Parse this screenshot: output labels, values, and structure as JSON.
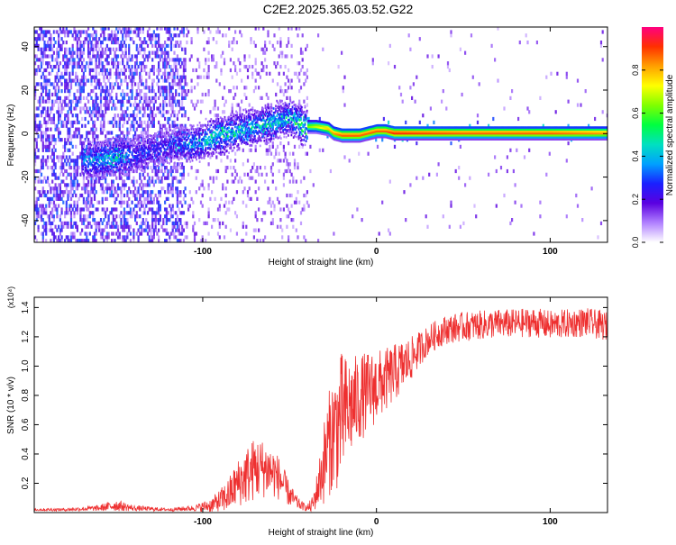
{
  "title": "C2E2.2025.365.03.52.G22",
  "chart_data": [
    {
      "type": "heatmap",
      "name": "spectrogram",
      "xlabel": "Height of straight line (km)",
      "ylabel": "Frequency (Hz)",
      "xlim": [
        -197,
        133
      ],
      "ylim": [
        -50,
        49
      ],
      "xticks": [
        -100,
        0,
        100
      ],
      "yticks": [
        -40,
        -20,
        0,
        20,
        40
      ],
      "colorbar": {
        "label": "Normalized spectral amplitude",
        "range": [
          0,
          1
        ],
        "ticks": [
          0.0,
          0.2,
          0.4,
          0.6,
          0.8
        ],
        "tick_labels": [
          "0.0",
          "0.2",
          "0.4",
          "0.6",
          "0.8"
        ],
        "colormap": [
          "#ffffff",
          "#b080ff",
          "#5a00e0",
          "#1a20ff",
          "#00a0ff",
          "#00e0c0",
          "#00ff40",
          "#80ff00",
          "#ffff00",
          "#ffa000",
          "#ff3000",
          "#ff0080"
        ]
      },
      "ridge": [
        {
          "x": -160,
          "freq": -12,
          "amp": 0.45
        },
        {
          "x": -150,
          "freq": -11,
          "amp": 0.55
        },
        {
          "x": -140,
          "freq": -10,
          "amp": 0.35
        },
        {
          "x": -120,
          "freq": -6,
          "amp": 0.3
        },
        {
          "x": -100,
          "freq": -4,
          "amp": 0.5
        },
        {
          "x": -90,
          "freq": -1,
          "amp": 0.55
        },
        {
          "x": -80,
          "freq": 1,
          "amp": 0.5
        },
        {
          "x": -70,
          "freq": 3,
          "amp": 0.5
        },
        {
          "x": -60,
          "freq": 5,
          "amp": 0.55
        },
        {
          "x": -50,
          "freq": 7,
          "amp": 0.5
        },
        {
          "x": -42,
          "freq": 3,
          "amp": 0.65
        },
        {
          "x": -35,
          "freq": 3,
          "amp": 0.75
        },
        {
          "x": -28,
          "freq": 2,
          "amp": 0.85
        },
        {
          "x": -25,
          "freq": 0,
          "amp": 0.9
        },
        {
          "x": -20,
          "freq": -1,
          "amp": 0.95
        },
        {
          "x": -10,
          "freq": -1,
          "amp": 0.95
        },
        {
          "x": -5,
          "freq": 0,
          "amp": 0.95
        },
        {
          "x": 0,
          "freq": 1,
          "amp": 0.95
        },
        {
          "x": 5,
          "freq": 1,
          "amp": 0.95
        },
        {
          "x": 10,
          "freq": 0,
          "amp": 1.0
        },
        {
          "x": 50,
          "freq": 0,
          "amp": 0.95
        },
        {
          "x": 100,
          "freq": 0,
          "amp": 0.95
        },
        {
          "x": 133,
          "freq": 0,
          "amp": 0.9
        }
      ]
    },
    {
      "type": "line",
      "name": "snr",
      "xlabel": "Height of straight line (km)",
      "ylabel": "SNR (10 * v/v)",
      "scale_label": "(x10⁴)",
      "xlim": [
        -197,
        133
      ],
      "ylim": [
        0,
        1.47
      ],
      "xticks": [
        -100,
        0,
        100
      ],
      "yticks": [
        0.2,
        0.4,
        0.6,
        0.8,
        1.0,
        1.2,
        1.4
      ],
      "ytick_labels": [
        "0.2",
        "0.4",
        "0.6",
        "0.8",
        "1.0",
        "1.2",
        "1.4"
      ],
      "color": "#ee3030",
      "series": [
        {
          "name": "SNR",
          "x": [
            -197,
            -180,
            -160,
            -150,
            -140,
            -120,
            -105,
            -95,
            -90,
            -85,
            -80,
            -75,
            -70,
            -65,
            -60,
            -55,
            -50,
            -45,
            -40,
            -37,
            -35,
            -32,
            -30,
            -28,
            -25,
            -22,
            -20,
            -18,
            -15,
            -10,
            -5,
            0,
            5,
            10,
            15,
            20,
            25,
            30,
            35,
            40,
            50,
            60,
            70,
            80,
            90,
            100,
            110,
            120,
            133
          ],
          "y": [
            0.02,
            0.02,
            0.03,
            0.05,
            0.03,
            0.02,
            0.03,
            0.05,
            0.08,
            0.12,
            0.2,
            0.25,
            0.3,
            0.3,
            0.28,
            0.22,
            0.12,
            0.06,
            0.03,
            0.05,
            0.12,
            0.25,
            0.35,
            0.45,
            0.55,
            0.6,
            0.65,
            0.68,
            0.72,
            0.78,
            0.82,
            0.86,
            0.9,
            0.95,
            1.0,
            1.05,
            1.12,
            1.18,
            1.22,
            1.25,
            1.27,
            1.28,
            1.29,
            1.29,
            1.3,
            1.28,
            1.29,
            1.3,
            1.27
          ],
          "noise": [
            0.01,
            0.01,
            0.02,
            0.04,
            0.02,
            0.01,
            0.02,
            0.05,
            0.08,
            0.12,
            0.16,
            0.2,
            0.22,
            0.2,
            0.18,
            0.14,
            0.08,
            0.04,
            0.02,
            0.06,
            0.1,
            0.2,
            0.3,
            0.35,
            0.4,
            0.45,
            0.45,
            0.4,
            0.35,
            0.3,
            0.28,
            0.25,
            0.22,
            0.2,
            0.18,
            0.15,
            0.12,
            0.1,
            0.1,
            0.1,
            0.1,
            0.1,
            0.1,
            0.1,
            0.1,
            0.1,
            0.1,
            0.1,
            0.1
          ]
        }
      ]
    }
  ]
}
